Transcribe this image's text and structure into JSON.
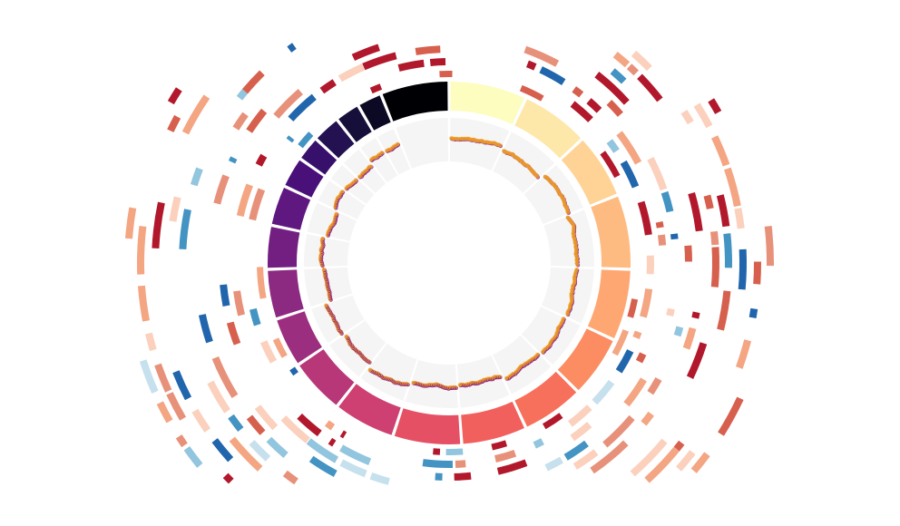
{
  "diagram": {
    "type": "circos",
    "ideogram": [
      {
        "span": 25,
        "color": "#fcfdbf"
      },
      {
        "span": 22,
        "color": "#fde7a9"
      },
      {
        "span": 21,
        "color": "#fed395"
      },
      {
        "span": 24,
        "color": "#febb81"
      },
      {
        "span": 23,
        "color": "#fea772"
      },
      {
        "span": 20,
        "color": "#fc8d62"
      },
      {
        "span": 20,
        "color": "#f7705c"
      },
      {
        "span": 21,
        "color": "#f1605d"
      },
      {
        "span": 22,
        "color": "#e55064"
      },
      {
        "span": 20,
        "color": "#cd4071"
      },
      {
        "span": 18,
        "color": "#b73779"
      },
      {
        "span": 16,
        "color": "#9c2e7f"
      },
      {
        "span": 16,
        "color": "#8c2981"
      },
      {
        "span": 14,
        "color": "#721f81"
      },
      {
        "span": 13,
        "color": "#5f187f"
      },
      {
        "span": 10,
        "color": "#4a1079"
      },
      {
        "span": 8,
        "color": "#36106b"
      },
      {
        "span": 9,
        "color": "#231151"
      },
      {
        "span": 8,
        "color": "#160f3a"
      },
      {
        "span": 8,
        "color": "#0b0924"
      },
      {
        "span": 22,
        "color": "#000004"
      }
    ],
    "scatter_colors": [
      "#7b0a8a",
      "#f5a623"
    ],
    "track_background": "#f5f5f5",
    "heatmap_palette": [
      "#b2182b",
      "#d6604d",
      "#e8917a",
      "#f4a582",
      "#fbd0bd",
      "#c6e0ee",
      "#92c5de",
      "#4393c3",
      "#2166ac"
    ]
  }
}
